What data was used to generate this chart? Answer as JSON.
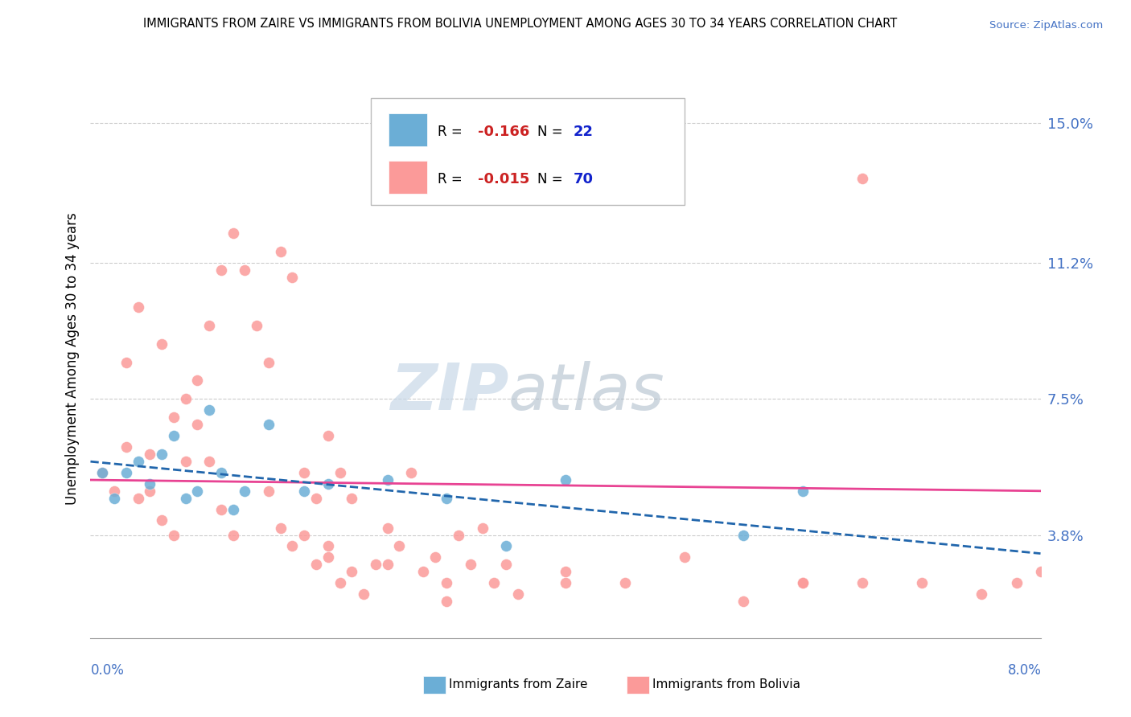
{
  "title": "IMMIGRANTS FROM ZAIRE VS IMMIGRANTS FROM BOLIVIA UNEMPLOYMENT AMONG AGES 30 TO 34 YEARS CORRELATION CHART",
  "source": "Source: ZipAtlas.com",
  "ylabel": "Unemployment Among Ages 30 to 34 years",
  "ytick_labels": [
    "15.0%",
    "11.2%",
    "7.5%",
    "3.8%"
  ],
  "ytick_values": [
    0.15,
    0.112,
    0.075,
    0.038
  ],
  "xmin": 0.0,
  "xmax": 0.08,
  "ymin": 0.01,
  "ymax": 0.162,
  "zaire_color": "#6baed6",
  "bolivia_color": "#fb9a99",
  "zaire_line_color": "#2166ac",
  "bolivia_line_color": "#e84393",
  "zaire_R": "-0.166",
  "zaire_N": "22",
  "bolivia_R": "-0.015",
  "bolivia_N": "70",
  "legend_label_zaire": "Immigrants from Zaire",
  "legend_label_bolivia": "Immigrants from Bolivia",
  "watermark_zip": "ZIP",
  "watermark_atlas": "atlas",
  "bg_color": "#ffffff",
  "grid_color": "#cccccc",
  "zaire_scatter_x": [
    0.001,
    0.002,
    0.003,
    0.004,
    0.005,
    0.006,
    0.007,
    0.008,
    0.009,
    0.01,
    0.011,
    0.012,
    0.013,
    0.015,
    0.018,
    0.02,
    0.025,
    0.03,
    0.035,
    0.04,
    0.055,
    0.06
  ],
  "zaire_scatter_y": [
    0.055,
    0.048,
    0.055,
    0.058,
    0.052,
    0.06,
    0.065,
    0.048,
    0.05,
    0.072,
    0.055,
    0.045,
    0.05,
    0.068,
    0.05,
    0.052,
    0.053,
    0.048,
    0.035,
    0.053,
    0.038,
    0.05
  ],
  "bolivia_scatter_x": [
    0.001,
    0.002,
    0.003,
    0.004,
    0.005,
    0.006,
    0.007,
    0.008,
    0.009,
    0.01,
    0.011,
    0.012,
    0.013,
    0.014,
    0.015,
    0.016,
    0.017,
    0.018,
    0.019,
    0.02,
    0.021,
    0.022,
    0.003,
    0.004,
    0.005,
    0.006,
    0.007,
    0.008,
    0.009,
    0.01,
    0.011,
    0.012,
    0.015,
    0.016,
    0.017,
    0.018,
    0.019,
    0.02,
    0.021,
    0.022,
    0.023,
    0.024,
    0.025,
    0.026,
    0.027,
    0.028,
    0.029,
    0.03,
    0.031,
    0.032,
    0.033,
    0.034,
    0.035,
    0.036,
    0.04,
    0.045,
    0.05,
    0.055,
    0.06,
    0.065,
    0.07,
    0.075,
    0.078,
    0.08,
    0.06,
    0.065,
    0.02,
    0.025,
    0.03,
    0.04
  ],
  "bolivia_scatter_y": [
    0.055,
    0.05,
    0.085,
    0.1,
    0.06,
    0.09,
    0.07,
    0.075,
    0.08,
    0.095,
    0.11,
    0.12,
    0.11,
    0.095,
    0.085,
    0.115,
    0.108,
    0.055,
    0.048,
    0.065,
    0.055,
    0.048,
    0.062,
    0.048,
    0.05,
    0.042,
    0.038,
    0.058,
    0.068,
    0.058,
    0.045,
    0.038,
    0.05,
    0.04,
    0.035,
    0.038,
    0.03,
    0.032,
    0.025,
    0.028,
    0.022,
    0.03,
    0.04,
    0.035,
    0.055,
    0.028,
    0.032,
    0.025,
    0.038,
    0.03,
    0.04,
    0.025,
    0.03,
    0.022,
    0.028,
    0.025,
    0.032,
    0.02,
    0.025,
    0.135,
    0.025,
    0.022,
    0.025,
    0.028,
    0.025,
    0.025,
    0.035,
    0.03,
    0.02,
    0.025
  ],
  "zaire_trend_x0": 0.0,
  "zaire_trend_x1": 0.08,
  "zaire_trend_y0": 0.058,
  "zaire_trend_y1": 0.033,
  "bolivia_trend_x0": 0.0,
  "bolivia_trend_x1": 0.08,
  "bolivia_trend_y0": 0.053,
  "bolivia_trend_y1": 0.05
}
